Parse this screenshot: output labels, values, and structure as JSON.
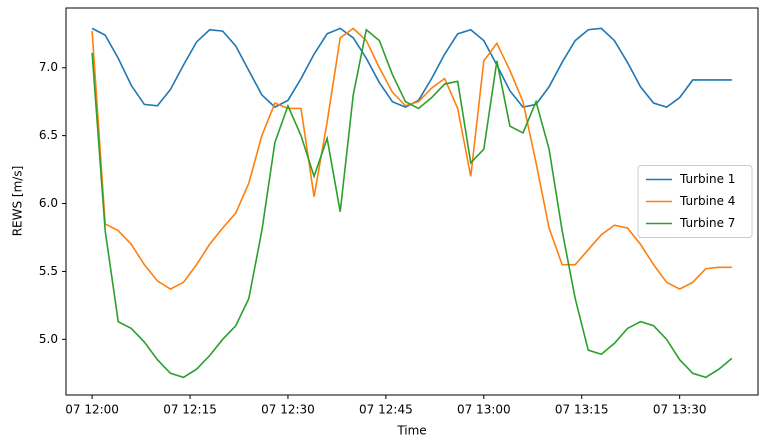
{
  "chart_data": {
    "type": "line",
    "x_label": "Time",
    "y_label": "REWS [m/s]",
    "x": [
      "07 12:00",
      "07 12:02",
      "07 12:04",
      "07 12:06",
      "07 12:08",
      "07 12:10",
      "07 12:12",
      "07 12:14",
      "07 12:16",
      "07 12:18",
      "07 12:20",
      "07 12:22",
      "07 12:24",
      "07 12:26",
      "07 12:28",
      "07 12:30",
      "07 12:32",
      "07 12:34",
      "07 12:36",
      "07 12:38",
      "07 12:40",
      "07 12:42",
      "07 12:44",
      "07 12:46",
      "07 12:48",
      "07 12:50",
      "07 12:52",
      "07 12:54",
      "07 12:56",
      "07 12:58",
      "07 13:00",
      "07 13:02",
      "07 13:04",
      "07 13:06",
      "07 13:08",
      "07 13:10",
      "07 13:12",
      "07 13:14",
      "07 13:16",
      "07 13:18",
      "07 13:20",
      "07 13:22",
      "07 13:24",
      "07 13:26",
      "07 13:28",
      "07 13:30",
      "07 13:32",
      "07 13:34",
      "07 13:36",
      "07 13:38"
    ],
    "series": [
      {
        "name": "Turbine 1",
        "color": "#1f77b4",
        "values": [
          7.29,
          7.24,
          7.07,
          6.87,
          6.73,
          6.72,
          6.84,
          7.02,
          7.19,
          7.28,
          7.27,
          7.16,
          6.98,
          6.8,
          6.71,
          6.76,
          6.92,
          7.1,
          7.25,
          7.29,
          7.22,
          7.07,
          6.89,
          6.75,
          6.71,
          6.76,
          6.92,
          7.1,
          7.25,
          7.28,
          7.2,
          7.02,
          6.83,
          6.71,
          6.73,
          6.86,
          7.04,
          7.2,
          7.28,
          7.29,
          7.2,
          7.04,
          6.86,
          6.74,
          6.71,
          6.78,
          6.91,
          6.91,
          6.91,
          6.91
        ]
      },
      {
        "name": "Turbine 4",
        "color": "#ff7f0e",
        "values": [
          7.27,
          5.85,
          5.8,
          5.7,
          5.55,
          5.43,
          5.37,
          5.42,
          5.55,
          5.7,
          5.82,
          5.93,
          6.15,
          6.5,
          6.74,
          6.7,
          6.7,
          6.05,
          6.6,
          7.22,
          7.29,
          7.2,
          7.0,
          6.82,
          6.72,
          6.75,
          6.85,
          6.92,
          6.7,
          6.2,
          7.05,
          7.18,
          6.98,
          6.75,
          6.3,
          5.82,
          5.55,
          5.55,
          5.66,
          5.77,
          5.84,
          5.82,
          5.7,
          5.55,
          5.42,
          5.37,
          5.42,
          5.52,
          5.53,
          5.53
        ]
      },
      {
        "name": "Turbine 7",
        "color": "#2ca02c",
        "values": [
          7.11,
          5.8,
          5.13,
          5.08,
          4.98,
          4.85,
          4.75,
          4.72,
          4.78,
          4.88,
          5.0,
          5.1,
          5.3,
          5.8,
          6.45,
          6.72,
          6.5,
          6.2,
          6.48,
          5.94,
          6.8,
          7.28,
          7.2,
          6.95,
          6.75,
          6.7,
          6.78,
          6.88,
          6.9,
          6.3,
          6.4,
          7.05,
          6.57,
          6.52,
          6.75,
          6.4,
          5.8,
          5.3,
          4.92,
          4.89,
          4.97,
          5.08,
          5.13,
          5.1,
          5.0,
          4.85,
          4.75,
          4.72,
          4.78,
          4.86
        ]
      }
    ],
    "xlim": [
      "07 11:56",
      "07 13:42"
    ],
    "xticks": [
      "07 12:00",
      "07 12:15",
      "07 12:30",
      "07 12:45",
      "07 13:00",
      "07 13:15",
      "07 13:30"
    ],
    "ylim": [
      4.59,
      7.44
    ],
    "yticks": [
      {
        "value": 5,
        "label": "5.0"
      },
      5.5,
      {
        "value": 6,
        "label": "6.0"
      },
      6.5,
      {
        "value": 7,
        "label": "7.0"
      }
    ],
    "legend": "center right"
  }
}
